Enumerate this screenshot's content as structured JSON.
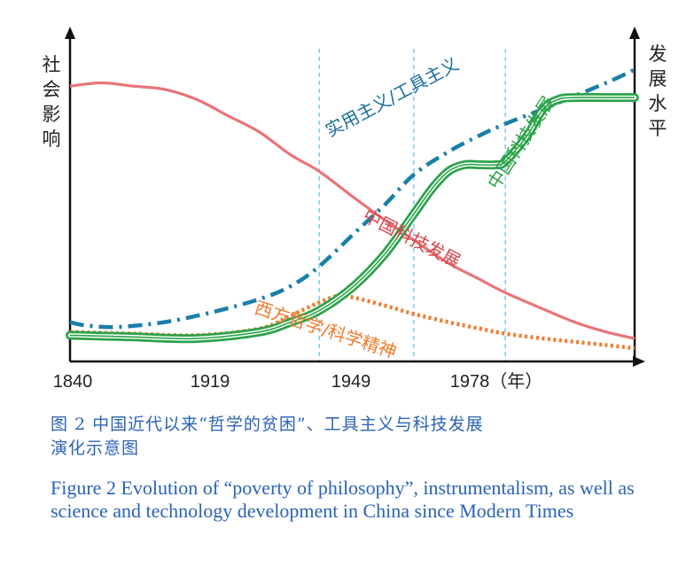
{
  "chart_data": {
    "type": "line",
    "left_axis_label": "社会影响",
    "right_axis_label": "发展水平",
    "x_ticks": [
      "1840",
      "1919",
      "1949",
      "1978（年）"
    ],
    "x_values": [
      1840,
      1919,
      1949,
      1978
    ],
    "series": [
      {
        "name": "实用主义/工具主义",
        "color": "#1a7fa8",
        "style": "dash-dot",
        "x": [
          1840,
          1845,
          1855,
          1870,
          1885,
          1900,
          1910,
          1919,
          1930,
          1940,
          1949,
          1960,
          1970,
          1978,
          1990,
          2000,
          2010,
          2019
        ],
        "y": [
          12,
          11,
          10.5,
          12,
          15,
          19,
          23,
          29,
          39,
          48,
          57,
          64,
          69,
          72.5,
          77,
          81,
          85,
          89
        ]
      },
      {
        "name": "中国科技发展",
        "label_index": 0,
        "color": "#2ca24a",
        "style": "double-line",
        "x": [
          1840,
          1860,
          1880,
          1900,
          1910,
          1919,
          1930,
          1940,
          1949,
          1955,
          1960,
          1965,
          1970,
          1975,
          1978,
          1985,
          1990,
          1995,
          2000,
          2010,
          2019
        ],
        "y": [
          8,
          7.5,
          7,
          9,
          12,
          15.5,
          23,
          33,
          45,
          53,
          58,
          60,
          60,
          60,
          61,
          69,
          77,
          80,
          80.5,
          80.5,
          80.5
        ]
      },
      {
        "name": "中国科技发展",
        "label_index": 1,
        "color": "#e87478",
        "style": "solid",
        "x": [
          1840,
          1850,
          1860,
          1870,
          1880,
          1890,
          1900,
          1910,
          1919,
          1930,
          1940,
          1949,
          1960,
          1970,
          1978,
          1990,
          2000,
          2010,
          2019
        ],
        "y": [
          84,
          85,
          84,
          83,
          80,
          75,
          70,
          63,
          58,
          50,
          43,
          37,
          30,
          25,
          21,
          16,
          12,
          9,
          7
        ]
      },
      {
        "name": "西方哲学/科学精神",
        "color": "#f07b2c",
        "style": "dotted",
        "x": [
          1840,
          1860,
          1880,
          1900,
          1910,
          1919,
          1925,
          1930,
          1940,
          1949,
          1960,
          1970,
          1978,
          1990,
          2000,
          2010,
          2019
        ],
        "y": [
          9,
          8.5,
          8,
          10,
          14,
          18,
          20,
          19.5,
          17,
          14.5,
          12,
          10,
          8.5,
          7,
          6,
          5,
          4
        ]
      }
    ],
    "labels": [
      "实用主义/工具主义",
      "中国科技发展",
      "中国科技发展",
      "西方哲学/科学精神"
    ],
    "vertical_guides": [
      1919,
      1949,
      1978
    ],
    "xlim": [
      1840,
      2019
    ],
    "ylim": [
      0,
      100
    ]
  },
  "caption": {
    "zh_line1": "图 2  中国近代以来“哲学的贫困”、工具主义与科技发展",
    "zh_line2": "演化示意图",
    "en": "Figure 2    Evolution of “poverty of philosophy”, instrumentalism, as well as science and technology development in China since Modern Times"
  }
}
